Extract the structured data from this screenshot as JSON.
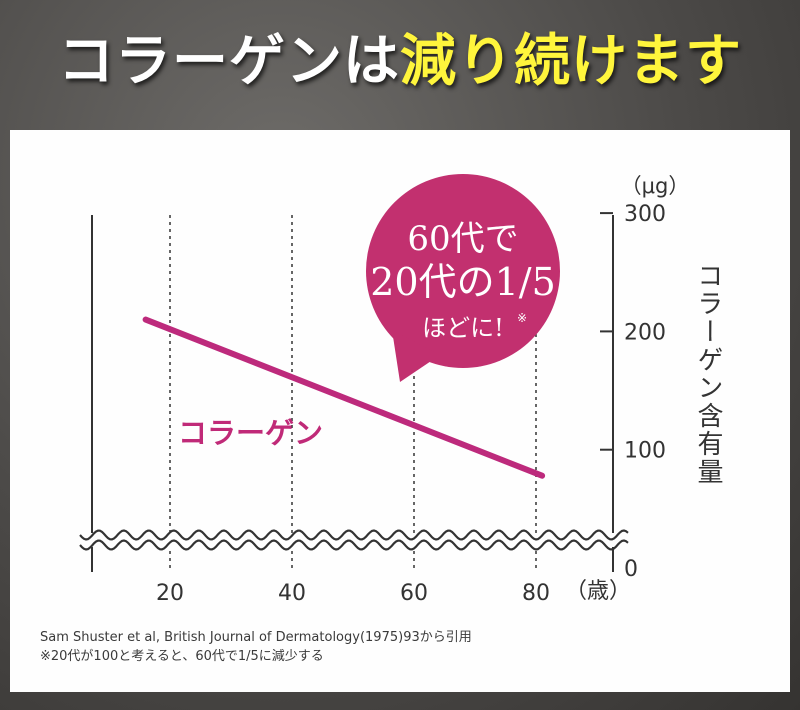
{
  "header": {
    "title_main": "コラーゲンは",
    "title_highlight": "減り続けます"
  },
  "colors": {
    "background": "#4c4a48",
    "title_white": "#ffffff",
    "title_yellow": "#fff53c",
    "collagen_line": "#bd2a7c",
    "callout_fill": "#c2306f",
    "axis": "#333333"
  },
  "callout": {
    "line1": "60代で",
    "line2": "20代の1/5",
    "line3": "ほどに!",
    "mark": "※"
  },
  "chart_data": {
    "type": "line",
    "x_ticks": [
      "20",
      "40",
      "60",
      "80"
    ],
    "x_unit": "（歳）",
    "y_ticks": [
      "0",
      "100",
      "200",
      "300"
    ],
    "y_unit": "（μg）",
    "ylabel": "コラーゲン含有量",
    "ylim": [
      0,
      300
    ],
    "xlim": [
      8,
      86
    ],
    "axis_break": true,
    "grid": "vertical dotted at x ticks",
    "series": [
      {
        "name": "コラーゲン",
        "x": [
          16,
          81
        ],
        "y": [
          210,
          78
        ]
      }
    ]
  },
  "source": {
    "line1": "Sam Shuster et al, British Journal of Dermatology(1975)93から引用",
    "line2": "※20代が100と考えると、60代で1/5に減少する"
  }
}
